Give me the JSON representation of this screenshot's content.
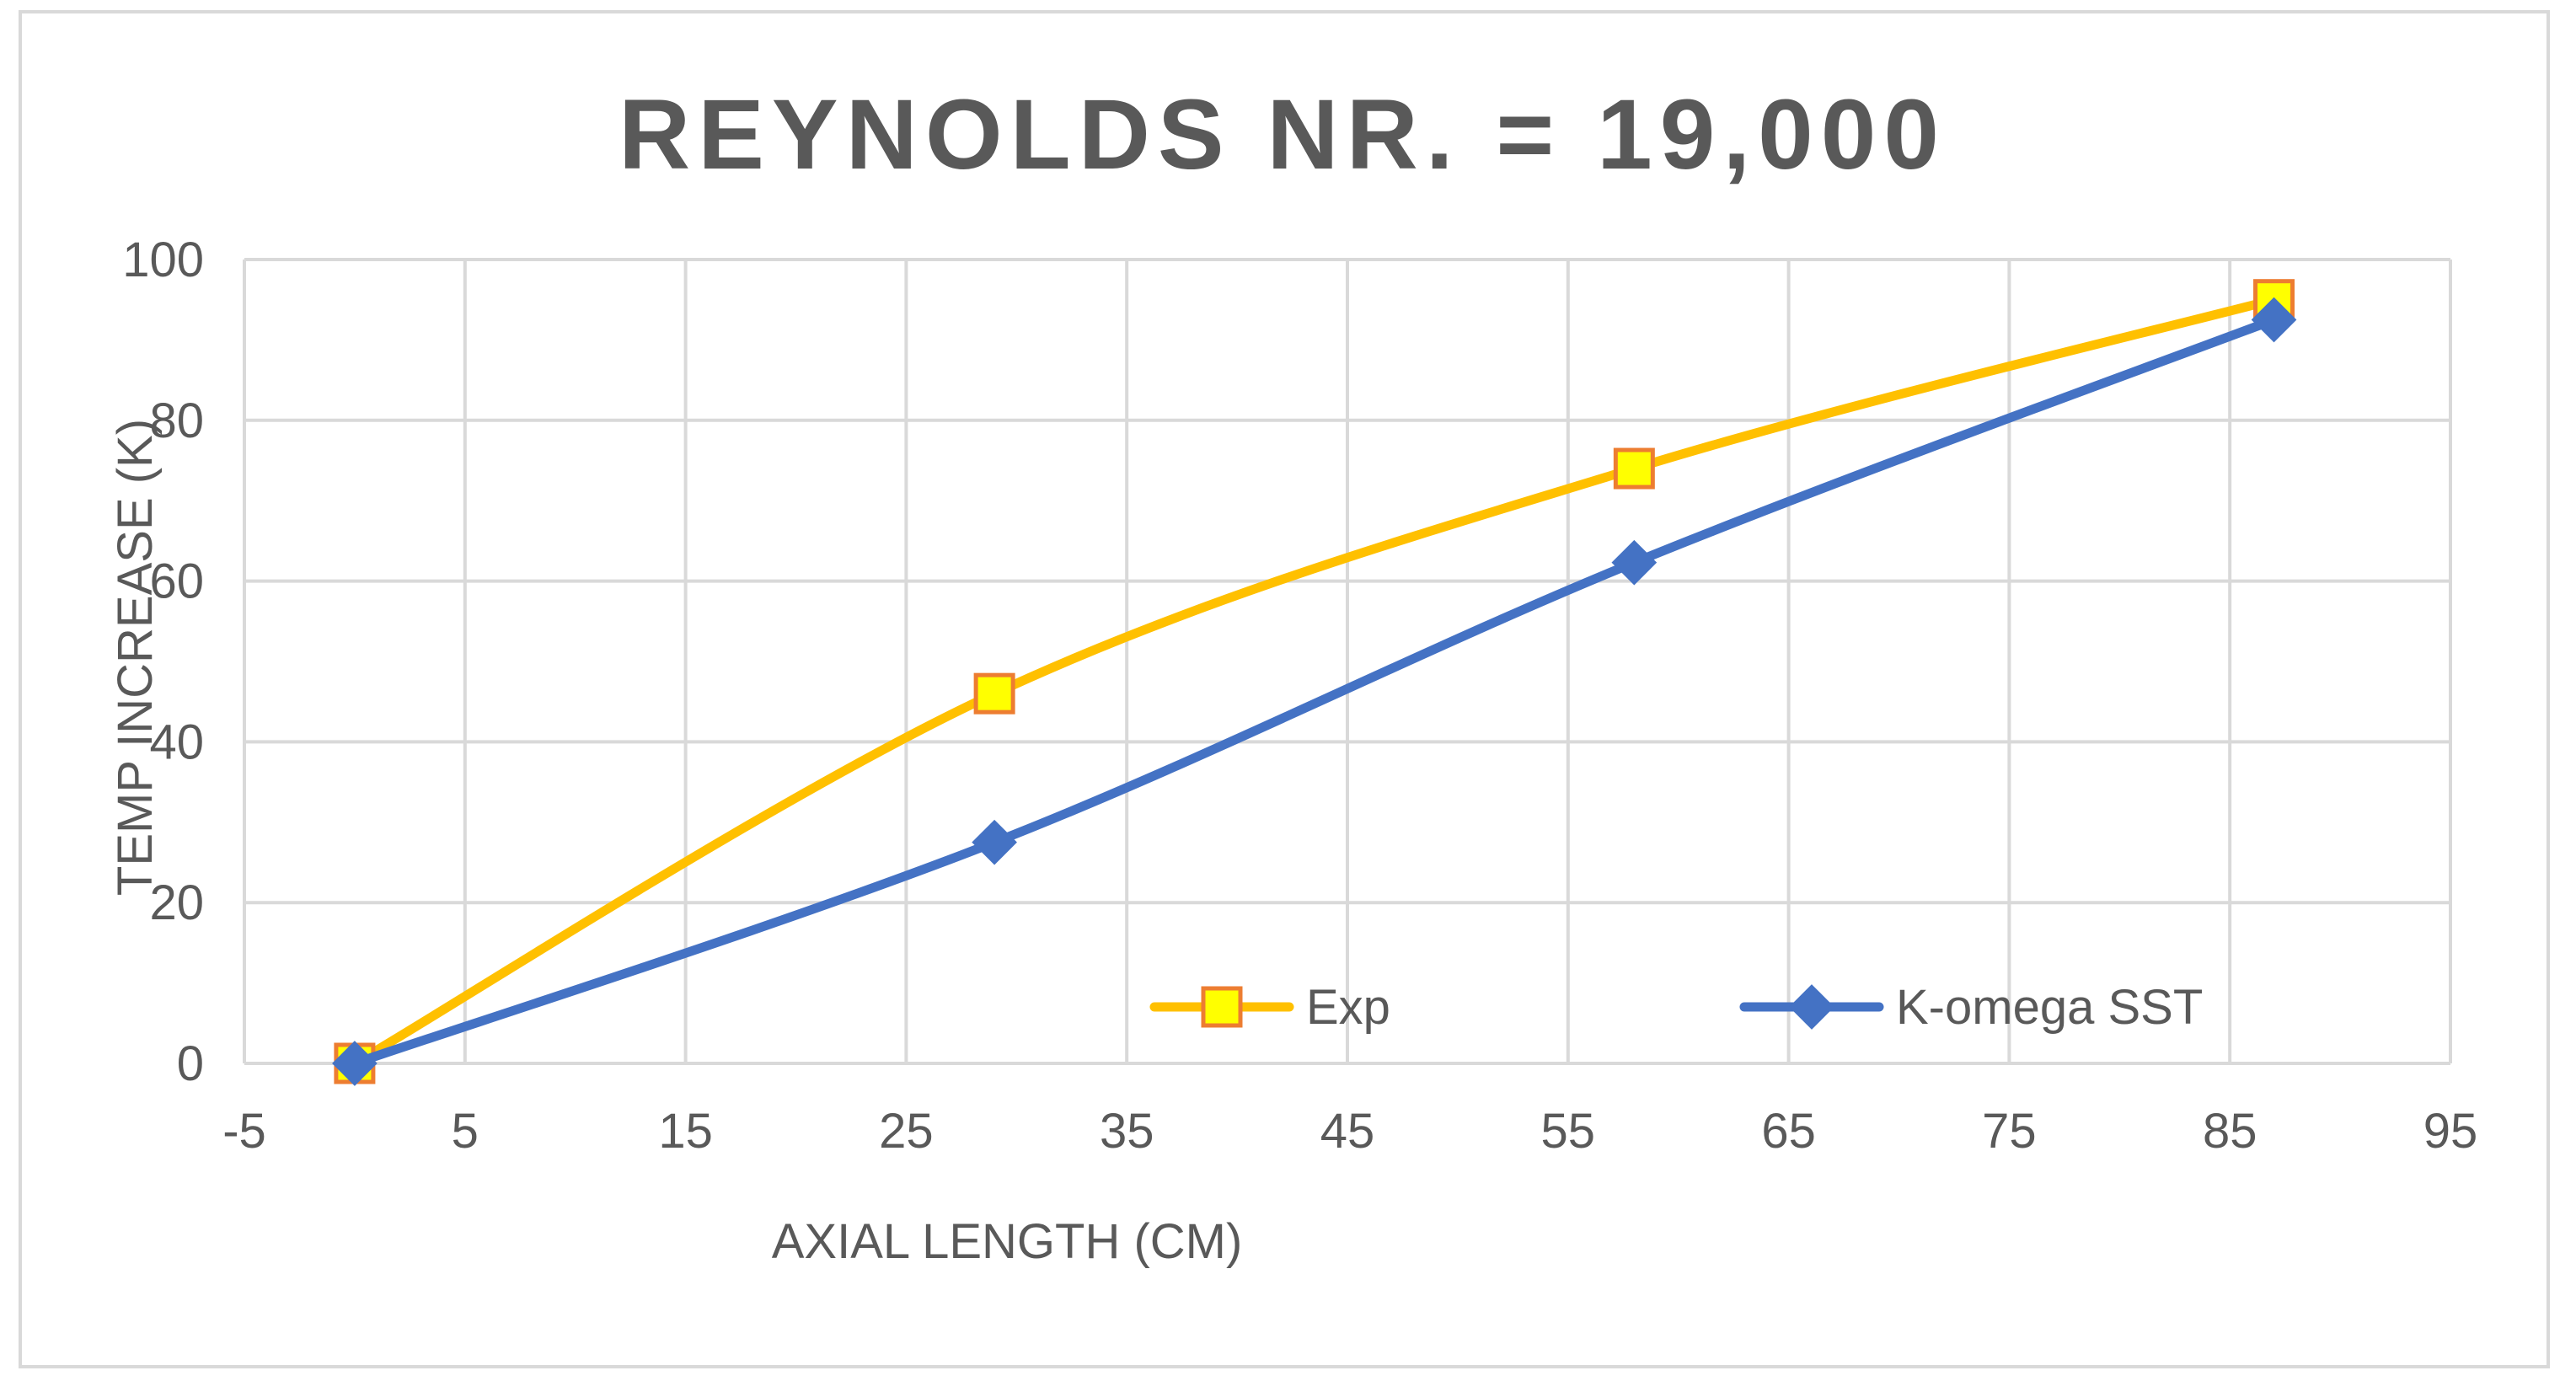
{
  "chart_data": {
    "type": "scatter",
    "title": "REYNOLDS NR. = 19,000",
    "xlabel": "AXIAL LENGTH (CM)",
    "ylabel": "TEMP INCREASE (K)",
    "xlim": [
      -5,
      95
    ],
    "ylim": [
      0,
      100
    ],
    "xticks": [
      -5,
      5,
      15,
      25,
      35,
      45,
      55,
      65,
      75,
      85,
      95
    ],
    "yticks": [
      0,
      20,
      40,
      60,
      80,
      100
    ],
    "grid": true,
    "smooth_lines": true,
    "legend_position": "bottom-inside",
    "series": [
      {
        "name": "Exp",
        "color": "#ffc000",
        "marker": "square",
        "marker_fill": "#ffff00",
        "marker_edge": "#ed7d31",
        "points": [
          [
            0,
            0
          ],
          [
            29,
            46
          ],
          [
            58,
            74
          ],
          [
            87,
            95
          ]
        ]
      },
      {
        "name": "K-omega SST",
        "color": "#4472c4",
        "marker": "diamond",
        "marker_fill": "#4472c4",
        "marker_edge": "#4472c4",
        "points": [
          [
            0,
            0
          ],
          [
            29,
            27.5
          ],
          [
            58,
            62.3
          ],
          [
            87,
            92.5
          ]
        ]
      }
    ]
  }
}
